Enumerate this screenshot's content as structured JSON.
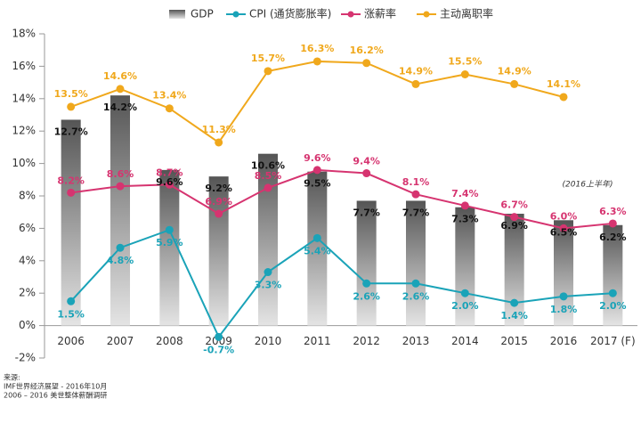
{
  "chart_data": {
    "type": "bar_line",
    "categories": [
      "2006",
      "2007",
      "2008",
      "2009",
      "2010",
      "2011",
      "2012",
      "2013",
      "2014",
      "2015",
      "2016",
      "2017 (F)"
    ],
    "series": [
      {
        "name": "GDP",
        "type": "bar",
        "color": "#6e6e6e",
        "values": [
          12.7,
          14.2,
          9.6,
          9.2,
          10.6,
          9.5,
          7.7,
          7.7,
          7.3,
          6.9,
          6.5,
          6.2
        ],
        "value_labels": [
          "12.7%",
          "14.2%",
          "9.6%",
          "9.2%",
          "10.6%",
          "9.5%",
          "7.7%",
          "7.7%",
          "7.3%",
          "6.9%",
          "6.5%",
          "6.2%"
        ]
      },
      {
        "name": "CPI (通货膨胀率)",
        "type": "line",
        "color": "#1aa3b8",
        "values": [
          1.5,
          4.8,
          5.9,
          -0.7,
          3.3,
          5.4,
          2.6,
          2.6,
          2.0,
          1.4,
          1.8,
          2.0
        ],
        "value_labels": [
          "1.5%",
          "4.8%",
          "5.9%",
          "-0.7%",
          "3.3%",
          "5.4%",
          "2.6%",
          "2.6%",
          "2.0%",
          "1.4%",
          "1.8%",
          "2.0%"
        ]
      },
      {
        "name": "涨薪率",
        "type": "line",
        "color": "#d63470",
        "values": [
          8.2,
          8.6,
          8.7,
          6.9,
          8.5,
          9.6,
          9.4,
          8.1,
          7.4,
          6.7,
          6.0,
          6.3
        ],
        "value_labels": [
          "8.2%",
          "8.6%",
          "8.7%",
          "6.9%",
          "8.5%",
          "9.6%",
          "9.4%",
          "8.1%",
          "7.4%",
          "6.7%",
          "6.0%",
          "6.3%"
        ]
      },
      {
        "name": "主动离职率",
        "type": "line",
        "color": "#f0a81c",
        "values": [
          13.5,
          14.6,
          13.4,
          11.3,
          15.7,
          16.3,
          16.2,
          14.9,
          15.5,
          14.9,
          14.1,
          null
        ],
        "value_labels": [
          "13.5%",
          "14.6%",
          "13.4%",
          "11.3%",
          "15.7%",
          "16.3%",
          "16.2%",
          "14.9%",
          "15.5%",
          "14.9%",
          "14.1%",
          null
        ]
      }
    ],
    "ylim": [
      -2,
      18
    ],
    "yticks": [
      {
        "value": -2,
        "label": "-2%"
      },
      {
        "value": 0,
        "label": "0%"
      },
      {
        "value": 2,
        "label": "2%"
      },
      {
        "value": 4,
        "label": "4%"
      },
      {
        "value": 6,
        "label": "6%"
      },
      {
        "value": 8,
        "label": "8%"
      },
      {
        "value": 10,
        "label": "10%"
      },
      {
        "value": 12,
        "label": "12%"
      },
      {
        "value": 14,
        "label": "14%"
      },
      {
        "value": 16,
        "label": "16%"
      },
      {
        "value": 18,
        "label": "18%"
      }
    ],
    "legend": "top",
    "annotation": "(2016上半年)",
    "source": [
      "来源:",
      "IMF世界经济展望 - 2016年10月",
      "2006 – 2016 美世整体薪酬调研"
    ]
  }
}
